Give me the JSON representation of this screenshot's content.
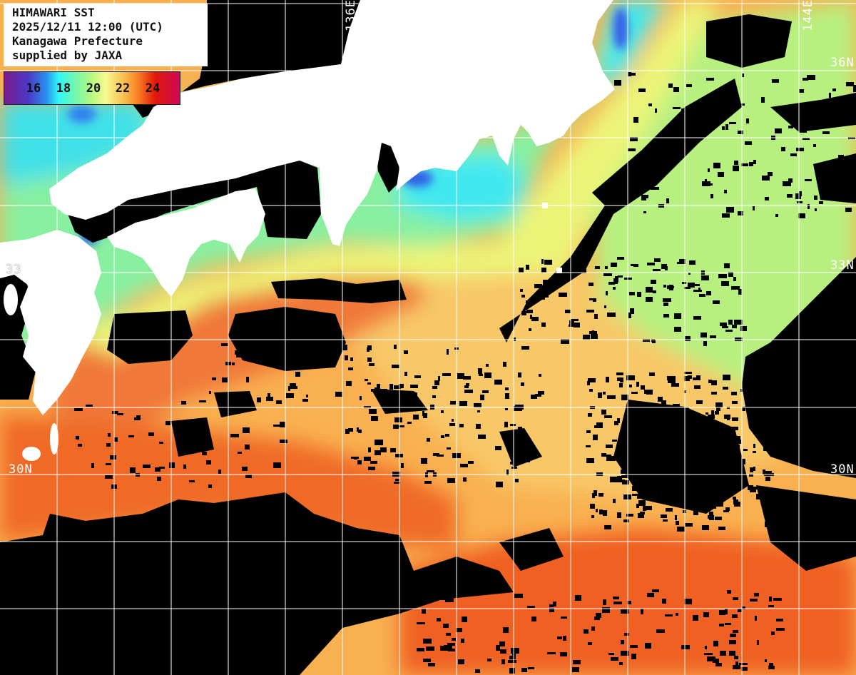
{
  "info": {
    "title": "HIMAWARI SST",
    "datetime": "2025/12/11 12:00 (UTC)",
    "region": "Kanagawa Prefecture",
    "credit": "supplied by JAXA"
  },
  "legend": {
    "ticks": [
      "16",
      "18",
      "20",
      "22",
      "24"
    ],
    "colors": [
      "#7a1a8c",
      "#4a3ac8",
      "#2a90f0",
      "#30f8f8",
      "#70f8b0",
      "#b8f880",
      "#f8f890",
      "#f8c050",
      "#f87820",
      "#e01808",
      "#d00858"
    ]
  },
  "grid_labels": {
    "lon_136": "136E",
    "lon_144": "144E",
    "lat_36_right": "36N",
    "lat_33_right": "33N",
    "lat_33_left": "33",
    "lat_30_right": "30N",
    "lat_30_left": "30N"
  },
  "colors": {
    "land": "#ffffff",
    "cloud": "#000000",
    "grid": "#ffffff",
    "sst_cold": "#30e8f0",
    "sst_mid": "#b8f080",
    "sst_warm": "#f9b050",
    "sst_hot": "#f06020"
  }
}
